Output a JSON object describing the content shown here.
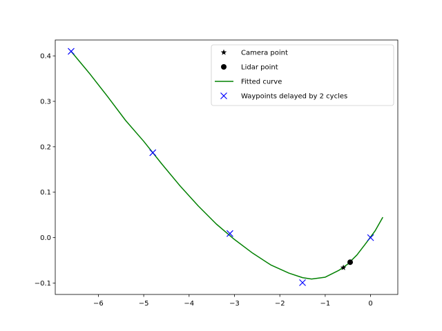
{
  "chart_data": {
    "type": "line",
    "title": "",
    "xlabel": "",
    "ylabel": "",
    "xlim": [
      -6.95,
      0.6
    ],
    "ylim": [
      -0.125,
      0.435
    ],
    "xticks": [
      -6,
      -5,
      -4,
      -3,
      -2,
      -1,
      0
    ],
    "xtick_labels": [
      "−6",
      "−5",
      "−4",
      "−3",
      "−2",
      "−1",
      "0"
    ],
    "yticks": [
      -0.1,
      0.0,
      0.1,
      0.2,
      0.3,
      0.4
    ],
    "ytick_labels": [
      "−0.1",
      "0.0",
      "0.1",
      "0.2",
      "0.3",
      "0.4"
    ],
    "grid": false,
    "legend_position": "upper right",
    "series": [
      {
        "name": "Camera point",
        "kind": "marker",
        "marker": "star",
        "color": "#000000",
        "points": [
          [
            -0.6,
            -0.066
          ]
        ]
      },
      {
        "name": "Lidar point",
        "kind": "marker",
        "marker": "circle",
        "color": "#000000",
        "points": [
          [
            -0.45,
            -0.054
          ]
        ]
      },
      {
        "name": "Fitted curve",
        "kind": "line",
        "color": "#008000",
        "points": [
          [
            -6.6,
            0.41
          ],
          [
            -6.2,
            0.362
          ],
          [
            -5.8,
            0.311
          ],
          [
            -5.4,
            0.258
          ],
          [
            -5.0,
            0.212
          ],
          [
            -4.6,
            0.162
          ],
          [
            -4.2,
            0.114
          ],
          [
            -3.8,
            0.07
          ],
          [
            -3.4,
            0.03
          ],
          [
            -3.0,
            -0.004
          ],
          [
            -2.6,
            -0.034
          ],
          [
            -2.2,
            -0.06
          ],
          [
            -1.8,
            -0.078
          ],
          [
            -1.5,
            -0.088
          ],
          [
            -1.3,
            -0.091
          ],
          [
            -1.0,
            -0.087
          ],
          [
            -0.7,
            -0.072
          ],
          [
            -0.5,
            -0.058
          ],
          [
            -0.3,
            -0.038
          ],
          [
            -0.1,
            -0.012
          ],
          [
            0.1,
            0.015
          ],
          [
            0.27,
            0.045
          ]
        ]
      },
      {
        "name": "Waypoints delayed by 2 cycles",
        "kind": "marker",
        "marker": "x",
        "color": "#0000ff",
        "points": [
          [
            -6.6,
            0.41
          ],
          [
            -4.8,
            0.187
          ],
          [
            -3.1,
            0.009
          ],
          [
            -1.5,
            -0.099
          ],
          [
            0.0,
            0.0
          ]
        ]
      }
    ]
  }
}
